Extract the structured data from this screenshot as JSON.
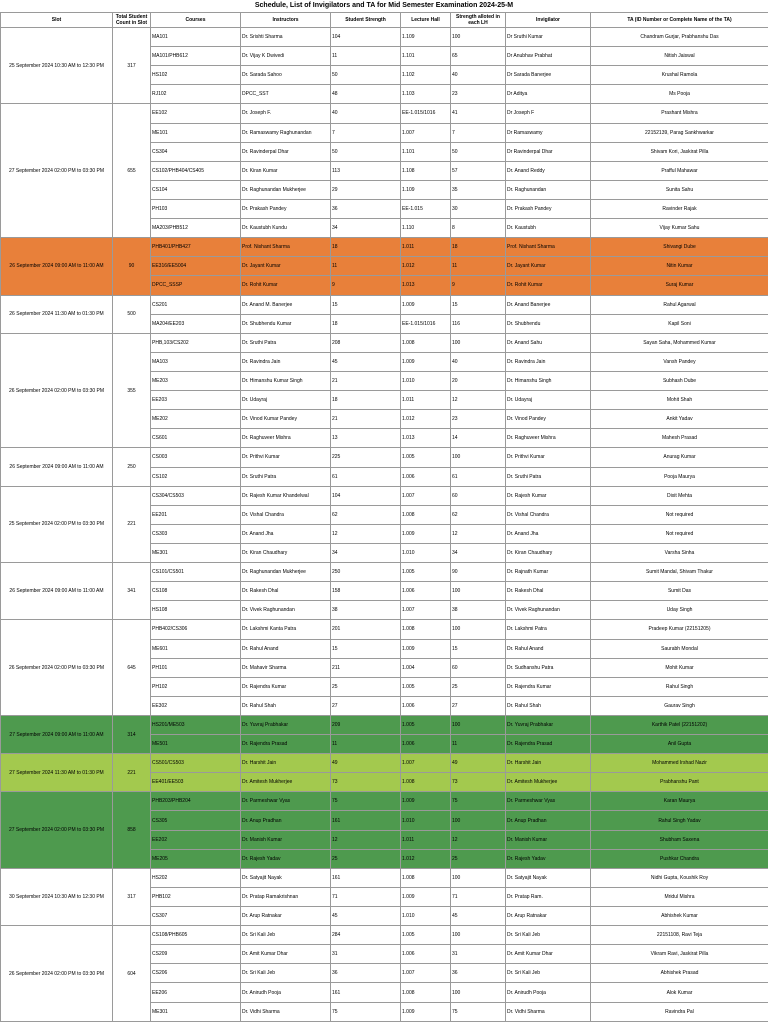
{
  "header": {
    "title": "Schedule, List of Invigilators and TA for Mid Semester Examination 2024-25-M"
  },
  "columns": [
    "Slot",
    "Total Student Count in Slot",
    "Courses",
    "Instructors",
    "Student Strength",
    "Lecture Hall",
    "Strength alloted in each LH",
    "Invigilator",
    "TA (ID Number or Complete Name of the TA)"
  ],
  "sections": [
    {
      "slot": "25 September 2024 10:30 AM to 12:30 PM",
      "count": "317",
      "color": "#ffffff",
      "rows": [
        [
          "MA101",
          "Dr. Srishti Sharma",
          "104",
          "1.109",
          "100",
          "Dr Sruthi Kumar",
          "Chandram Gurjar, Prabhanshu Das"
        ],
        [
          "MA101/PHB612",
          "Dr. Vijay K Dwivedi",
          "11",
          "1.101",
          "65",
          "Dr Anubhav Prabhat",
          "Nitish Jaiswal"
        ],
        [
          "HS102",
          "Dr. Sarada Sahoo",
          "50",
          "1.102",
          "40",
          "Dr Sarada Banerjee",
          "Krushal Ramola"
        ],
        [
          "RJ102",
          "DPCC_SST",
          "48",
          "1.103",
          "23",
          "Dr Aditya",
          "Ms Pooja"
        ]
      ]
    },
    {
      "slot": "27 September 2024 02:00 PM to 03:30 PM",
      "count": "655",
      "color": "#ffffff",
      "rows": [
        [
          "EE102",
          "Dr. Joseph F.",
          "40",
          "EE-1.015/1016",
          "41",
          "Dr Joseph F",
          "Prashant Mishra"
        ],
        [
          "ME101",
          "Dr. Ramaswamy Raghunandan",
          "7",
          "1.007",
          "7",
          "Dr Ramaswamy",
          "22152139, Parag Sankhwarkar"
        ],
        [
          "CS304",
          "Dr. Ravinderpal Dhar",
          "50",
          "1.101",
          "50",
          "Dr Ravinderpal Dhar",
          "Shivam Kori, Jaskirat Pilla"
        ],
        [
          "CS102/PHB404/CS405",
          "Dr. Kiran Kumar",
          "113",
          "1.108",
          "57",
          "Dr. Anand Reddy",
          "Prafful Mahawar"
        ],
        [
          "CS104",
          "Dr. Raghunandan Mukherjee",
          "29",
          "1.109",
          "35",
          "Dr. Raghunandan",
          "Sunita Sahu"
        ],
        [
          "PH103",
          "Dr. Prakash Pandey",
          "36",
          "EE-1.015",
          "30",
          "Dr. Prakash Pandey",
          "Ravinder Rajak"
        ],
        [
          "MA203/PHB512",
          "Dr. Kaustubh Kundu",
          "34",
          "1.110",
          "8",
          "Dr. Kaustubh",
          "Vijay Kumar Sahu"
        ]
      ]
    },
    {
      "slot": "26 September 2024 09:00 AM to 11:00 AM",
      "count": "90",
      "color": "#e8803a",
      "rows": [
        [
          "PHB401/PHB427",
          "Prof. Nishant Sharma",
          "18",
          "1.011",
          "18",
          "Prof. Nishant Sharma",
          "Shivangi Dube"
        ],
        [
          "EE316/EE5004",
          "Dr. Jayant Kumar",
          "11",
          "1.012",
          "11",
          "Dr. Jayant Kumar",
          "Nitin Kumar"
        ],
        [
          "DPCC_SSSP",
          "Dr. Rohit Kumar",
          "9",
          "1.013",
          "9",
          "Dr. Rohit Kumar",
          "Suraj Kumar"
        ]
      ]
    },
    {
      "slot": "26 September 2024 11:30 AM to 01:30 PM",
      "count": "500",
      "color": "#ffffff",
      "rows": [
        [
          "CS201",
          "Dr. Anand M. Banerjee",
          "15",
          "1.009",
          "15",
          "Dr. Anand Banerjee",
          "Rahul Agarwal"
        ],
        [
          "MA204/EE203",
          "Dr. Shubhendu Kumar",
          "18",
          "EE-1.015/1016",
          "116",
          "Dr. Shubhendu",
          "Kapil Soni"
        ]
      ]
    },
    {
      "slot": "26 September 2024 02:00 PM to 03:30 PM",
      "count": "355",
      "color": "#ffffff",
      "rows": [
        [
          "PHB,103/CS202",
          "Dr. Sruthi Patra",
          "208",
          "1.008",
          "100",
          "Dr. Anand Sahu",
          "Sayan Saha, Mohammed Kumar"
        ],
        [
          "MA103",
          "Dr. Ravindra Jain",
          "45",
          "1.009",
          "40",
          "Dr. Ravindra Jain",
          "Vansh Pandey"
        ],
        [
          "ME203",
          "Dr. Himanshu Kumar Singh",
          "21",
          "1.010",
          "20",
          "Dr. Himanshu Singh",
          "Subhash Dube"
        ],
        [
          "EE203",
          "Dr. Udayraj",
          "18",
          "1.011",
          "12",
          "Dr. Udayraj",
          "Mohit Shah"
        ],
        [
          "ME202",
          "Dr. Vinod Kumar Pandey",
          "21",
          "1.012",
          "23",
          "Dr. Vinod Pandey",
          "Ankit Yadav"
        ],
        [
          "CS601",
          "Dr. Raghuveer Mishra",
          "13",
          "1.013",
          "14",
          "Dr. Raghuveer Mishra",
          "Mahesh Prasad"
        ]
      ]
    },
    {
      "slot": "26 September 2024 09:00 AM to 11:00 AM",
      "count": "250",
      "color": "#ffffff",
      "rows": [
        [
          "CS003",
          "Dr. Prithvi Kumar",
          "225",
          "1.005",
          "100",
          "Dr. Prithvi Kumar",
          "Anurag Kumar"
        ],
        [
          "CS102",
          "Dr. Sruthi Patra",
          "61",
          "1.006",
          "61",
          "Dr. Sruthi Patra",
          "Pooja Maurya"
        ]
      ]
    },
    {
      "slot": "25 September 2024 02:00 PM to 03:30 PM",
      "count": "221",
      "color": "#ffffff",
      "rows": [
        [
          "CS304/CS503",
          "Dr. Rajesh Kumar Khandelwal",
          "104",
          "1.007",
          "60",
          "Dr. Rajesh Kumar",
          "Dixit Mehta"
        ],
        [
          "EE201",
          "Dr. Vishal Chandra",
          "62",
          "1.008",
          "62",
          "Dr. Vishal Chandra",
          "Not required"
        ],
        [
          "CS303",
          "Dr. Anand Jha",
          "12",
          "1.009",
          "12",
          "Dr. Anand Jha",
          "Not required"
        ],
        [
          "ME301",
          "Dr. Kiran Chaudhary",
          "34",
          "1.010",
          "34",
          "Dr. Kiran Chaudhary",
          "Varsha Sinha"
        ]
      ]
    },
    {
      "slot": "26 September 2024 09:00 AM to 11:00 AM",
      "count": "341",
      "color": "#ffffff",
      "rows": [
        [
          "CS101/CS501",
          "Dr. Raghunandan Mukherjee",
          "250",
          "1.005",
          "90",
          "Dr. Rajnath Kumar",
          "Sumit Mandal, Shivam Thakur"
        ],
        [
          "CS108",
          "Dr. Rakesh Dhal",
          "158",
          "1.006",
          "100",
          "Dr. Rakesh Dhal",
          "Sumit Das"
        ],
        [
          "HS108",
          "Dr. Vivek Raghunandan",
          "38",
          "1.007",
          "38",
          "Dr. Vivek Raghunandan",
          "Uday Singh"
        ]
      ]
    },
    {
      "slot": "26 September 2024 02:00 PM to 03:30 PM",
      "count": "645",
      "color": "#ffffff",
      "rows": [
        [
          "PHB402/CS306",
          "Dr. Lakshmi Kanta Patra",
          "201",
          "1.008",
          "100",
          "Dr. Lakshmi Patra",
          "Pradeep Kumar (22151205)"
        ],
        [
          "ME601",
          "Dr. Rahul Anand",
          "15",
          "1.009",
          "15",
          "Dr. Rahul Anand",
          "Saurabh Mondal"
        ],
        [
          "PH101",
          "Dr. Mahavir Sharma",
          "211",
          "1.004",
          "60",
          "Dr. Sudhanshu Patra",
          "Mohit Kumar"
        ],
        [
          "PH102",
          "Dr. Rajendra Kumar",
          "25",
          "1.005",
          "25",
          "Dr. Rajendra Kumar",
          "Rahul Singh"
        ],
        [
          "EE302",
          "Dr. Rahul Shah",
          "27",
          "1.006",
          "27",
          "Dr. Rahul Shah",
          "Gaurav Singh"
        ]
      ]
    },
    {
      "slot": "27 September 2024 09:00 AM to 11:00 AM",
      "count": "314",
      "color": "#4e9a4e",
      "rows": [
        [
          "HS201/ME503",
          "Dr. Yuvraj Prabhakar",
          "209",
          "1.005",
          "100",
          "Dr. Yuvraj Prabhakar",
          "Karthik Patel (22151202)"
        ],
        [
          "ME501",
          "Dr. Rajendra Prasad",
          "11",
          "1.006",
          "11",
          "Dr. Rajendra Prasad",
          "Anil Gupta"
        ]
      ]
    },
    {
      "slot": "27 September 2024 11:30 AM to 01:30 PM",
      "count": "221",
      "color": "#a3c94e",
      "rows": [
        [
          "CS501/CS503",
          "Dr. Harshit Jain",
          "49",
          "1.007",
          "49",
          "Dr. Harshit Jain",
          "Mohammed Irshad Nazir"
        ],
        [
          "EE401/EE503",
          "Dr. Amitesh Mukherjee",
          "73",
          "1.008",
          "73",
          "Dr. Amitesh Mukherjee",
          "Prabhanshu Pant"
        ]
      ]
    },
    {
      "slot": "27 September 2024 02:00 PM to 03:30 PM",
      "count": "858",
      "color": "#4e9a4e",
      "rows": [
        [
          "PHB203/PHB204",
          "Dr. Parmeshwar Vyas",
          "75",
          "1.009",
          "75",
          "Dr. Parmeshwar Vyas",
          "Karan Maurya"
        ],
        [
          "CS305",
          "Dr. Anup Pradhan",
          "161",
          "1.010",
          "100",
          "Dr. Anup Pradhan",
          "Rahul Singh Yadav"
        ],
        [
          "EE202",
          "Dr. Manish Kumar",
          "12",
          "1.011",
          "12",
          "Dr. Manish Kumar",
          "Shubham Saxena"
        ],
        [
          "ME205",
          "Dr. Rajesh Yadav",
          "25",
          "1.012",
          "25",
          "Dr. Rajesh Yadav",
          "Pushkar Chandra"
        ]
      ]
    },
    {
      "slot": "30 September 2024 10:30 AM to 12:30 PM",
      "count": "317",
      "color": "#ffffff",
      "rows": [
        [
          "HS202",
          "Dr. Satyajit Nayak",
          "161",
          "1.008",
          "100",
          "Dr. Satyajit Nayak",
          "Nidhi Gupta, Koushik Roy"
        ],
        [
          "PHB102",
          "Dr. Pratap Ramakrishnan",
          "71",
          "1.009",
          "71",
          "Dr. Pratap Ram.",
          "Mridul Mishra"
        ],
        [
          "CS307",
          "Dr. Arup Ratnakar",
          "45",
          "1.010",
          "45",
          "Dr. Arup Ratnakar",
          "Abhishek Kumar"
        ]
      ]
    },
    {
      "slot": "26 September 2024 02:00 PM to 03:30 PM",
      "count": "604",
      "color": "#ffffff",
      "rows": [
        [
          "CS108/PHB605",
          "Dr. Sri Kali Jeb",
          "284",
          "1.005",
          "100",
          "Dr. Sri Kali Jeb",
          "22151108, Ravi Teja"
        ],
        [
          "CS209",
          "Dr. Amit Kumar Dhar",
          "31",
          "1.006",
          "31",
          "Dr. Amit Kumar Dhar",
          "Vikram Ravi, Jaskirat Pilla"
        ],
        [
          "CS206",
          "Dr. Sri Kali Jeb",
          "36",
          "1.007",
          "36",
          "Dr. Sri Kali Jeb",
          "Abhishek Prasad"
        ],
        [
          "EE206",
          "Dr. Anirudh Pooja",
          "161",
          "1.008",
          "100",
          "Dr. Anirudh Pooja",
          "Alok Kumar"
        ],
        [
          "ME301",
          "Dr. Vidhi Sharma",
          "75",
          "1.009",
          "75",
          "Dr. Vidhi Sharma",
          "Ravindra Pal"
        ]
      ]
    }
  ]
}
